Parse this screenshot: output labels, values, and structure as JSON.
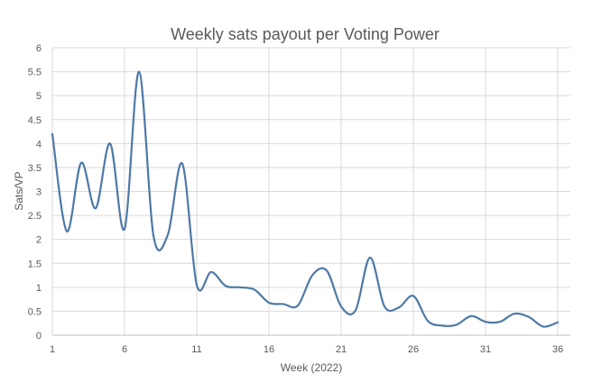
{
  "chart_data": {
    "type": "line",
    "title": "Weekly sats payout per Voting Power",
    "xlabel": "Week (2022)",
    "ylabel": "Sats/VP",
    "xlim": [
      1,
      36
    ],
    "ylim": [
      0,
      6
    ],
    "x_ticks": [
      1,
      6,
      11,
      16,
      21,
      26,
      31,
      36
    ],
    "y_ticks": [
      "0",
      "0.5",
      "1",
      "1.5",
      "2",
      "2.5",
      "3",
      "3.5",
      "4",
      "4.5",
      "5",
      "5.5",
      "6"
    ],
    "grid": true,
    "series": [
      {
        "color": "#4e79a7",
        "x": [
          1,
          2,
          3,
          4,
          5,
          6,
          7,
          8,
          9,
          10,
          11,
          12,
          13,
          14,
          15,
          16,
          17,
          18,
          19,
          20,
          21,
          22,
          23,
          24,
          25,
          26,
          27,
          28,
          29,
          30,
          31,
          32,
          33,
          34,
          35,
          36
        ],
        "values": [
          4.2,
          2.17,
          3.6,
          2.65,
          4.0,
          2.22,
          5.5,
          2.08,
          2.1,
          3.58,
          1.05,
          1.32,
          1.03,
          1.0,
          0.95,
          0.68,
          0.65,
          0.62,
          1.25,
          1.35,
          0.6,
          0.52,
          1.62,
          0.6,
          0.58,
          0.82,
          0.3,
          0.2,
          0.22,
          0.4,
          0.28,
          0.28,
          0.45,
          0.38,
          0.18,
          0.27
        ]
      }
    ]
  }
}
